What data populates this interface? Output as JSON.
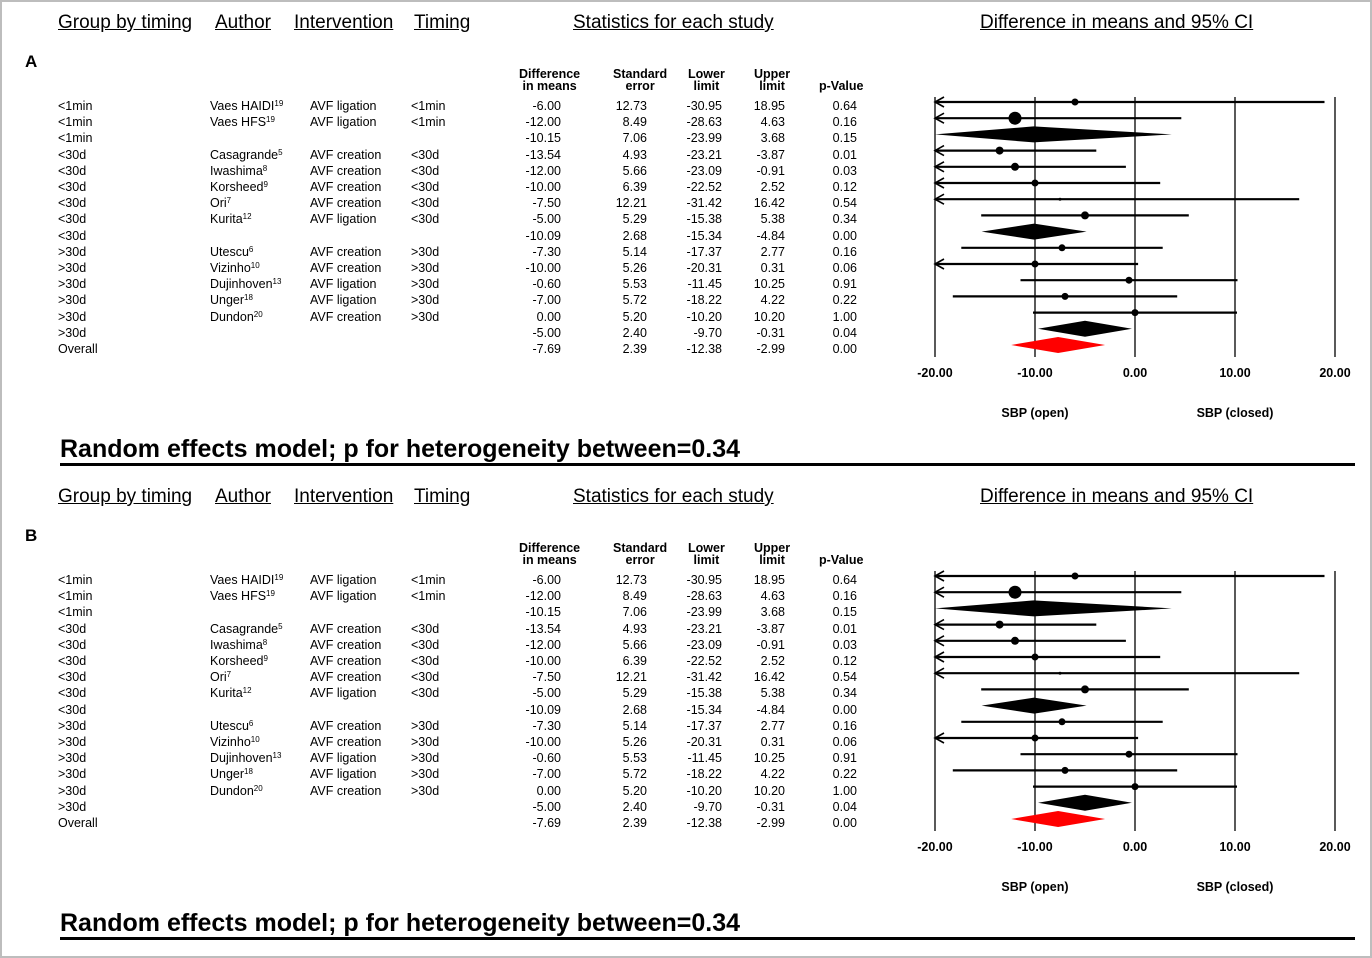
{
  "headers": {
    "group": "Group by timing",
    "author": "Author",
    "intervention": "Intervention",
    "timing": "Timing",
    "stats": "Statistics for each study",
    "ci": "Difference in means and 95% CI"
  },
  "columns": {
    "diff": "Difference\nin means",
    "se": "Standard\nerror",
    "lower": "Lower\nlimit",
    "upper": "Upper\nlimit",
    "p": "p-Value"
  },
  "axis_labels": {
    "left": "SBP (open)",
    "right": "SBP (closed)"
  },
  "footer": "Random effects model; p for heterogeneity between=0.34",
  "panels": [
    {
      "label": "A"
    },
    {
      "label": "B"
    }
  ],
  "rows": [
    {
      "group": "<1min",
      "author": "Vaes HAIDI",
      "sup": "19",
      "intervention": "AVF ligation",
      "timing": "<1min",
      "diff": "-6.00",
      "se": "12.73",
      "lower": "-30.95",
      "upper": "18.95",
      "p": "0.64"
    },
    {
      "group": "<1min",
      "author": "Vaes HFS",
      "sup": "19",
      "intervention": "AVF ligation",
      "timing": "<1min",
      "diff": "-12.00",
      "se": "8.49",
      "lower": "-28.63",
      "upper": "4.63",
      "p": "0.16"
    },
    {
      "group": "<1min",
      "author": "",
      "sup": "",
      "intervention": "",
      "timing": "",
      "diff": "-10.15",
      "se": "7.06",
      "lower": "-23.99",
      "upper": "3.68",
      "p": "0.15"
    },
    {
      "group": "<30d",
      "author": "Casagrande",
      "sup": "5",
      "intervention": "AVF creation",
      "timing": "<30d",
      "diff": "-13.54",
      "se": "4.93",
      "lower": "-23.21",
      "upper": "-3.87",
      "p": "0.01"
    },
    {
      "group": "<30d",
      "author": "Iwashima",
      "sup": "8",
      "intervention": "AVF creation",
      "timing": "<30d",
      "diff": "-12.00",
      "se": "5.66",
      "lower": "-23.09",
      "upper": "-0.91",
      "p": "0.03"
    },
    {
      "group": "<30d",
      "author": "Korsheed",
      "sup": "9",
      "intervention": "AVF creation",
      "timing": "<30d",
      "diff": "-10.00",
      "se": "6.39",
      "lower": "-22.52",
      "upper": "2.52",
      "p": "0.12"
    },
    {
      "group": "<30d",
      "author": "Ori",
      "sup": "7",
      "intervention": "AVF creation",
      "timing": "<30d",
      "diff": "-7.50",
      "se": "12.21",
      "lower": "-31.42",
      "upper": "16.42",
      "p": "0.54"
    },
    {
      "group": "<30d",
      "author": "Kurita",
      "sup": "12",
      "intervention": "AVF ligation",
      "timing": "<30d",
      "diff": "-5.00",
      "se": "5.29",
      "lower": "-15.38",
      "upper": "5.38",
      "p": "0.34"
    },
    {
      "group": "<30d",
      "author": "",
      "sup": "",
      "intervention": "",
      "timing": "",
      "diff": "-10.09",
      "se": "2.68",
      "lower": "-15.34",
      "upper": "-4.84",
      "p": "0.00"
    },
    {
      "group": ">30d",
      "author": "Utescu",
      "sup": "6",
      "intervention": "AVF creation",
      "timing": ">30d",
      "diff": "-7.30",
      "se": "5.14",
      "lower": "-17.37",
      "upper": "2.77",
      "p": "0.16"
    },
    {
      "group": ">30d",
      "author": "Vizinho",
      "sup": "10",
      "intervention": "AVF creation",
      "timing": ">30d",
      "diff": "-10.00",
      "se": "5.26",
      "lower": "-20.31",
      "upper": "0.31",
      "p": "0.06"
    },
    {
      "group": ">30d",
      "author": "Dujinhoven",
      "sup": "13",
      "intervention": "AVF ligation",
      "timing": ">30d",
      "diff": "-0.60",
      "se": "5.53",
      "lower": "-11.45",
      "upper": "10.25",
      "p": "0.91"
    },
    {
      "group": ">30d",
      "author": "Unger",
      "sup": "18",
      "intervention": "AVF ligation",
      "timing": ">30d",
      "diff": "-7.00",
      "se": "5.72",
      "lower": "-18.22",
      "upper": "4.22",
      "p": "0.22"
    },
    {
      "group": ">30d",
      "author": "Dundon",
      "sup": "20",
      "intervention": "AVF creation",
      "timing": ">30d",
      "diff": "0.00",
      "se": "5.20",
      "lower": "-10.20",
      "upper": "10.20",
      "p": "1.00"
    },
    {
      "group": ">30d",
      "author": "",
      "sup": "",
      "intervention": "",
      "timing": "",
      "diff": "-5.00",
      "se": "2.40",
      "lower": "-9.70",
      "upper": "-0.31",
      "p": "0.04"
    },
    {
      "group": "Overall",
      "author": "",
      "sup": "",
      "intervention": "",
      "timing": "",
      "diff": "-7.69",
      "se": "2.39",
      "lower": "-12.38",
      "upper": "-2.99",
      "p": "0.00"
    }
  ],
  "colors": {
    "overall": "#ff0000",
    "marker": "#000000"
  },
  "chart_data": {
    "type": "forest",
    "xlim": [
      -20,
      20
    ],
    "ticks": [
      "-20.00",
      "-10.00",
      "0.00",
      "10.00",
      "20.00"
    ],
    "tick_values": [
      -20,
      -10,
      0,
      10,
      20
    ],
    "kind": [
      "study",
      "study",
      "summary",
      "study",
      "study",
      "study",
      "study",
      "study",
      "summary",
      "study",
      "study",
      "study",
      "study",
      "study",
      "summary",
      "overall"
    ],
    "weight": [
      "small",
      "large",
      "",
      "medium",
      "medium",
      "small",
      "tiny",
      "medium",
      "",
      "small",
      "small",
      "small",
      "small",
      "small",
      "",
      ""
    ]
  }
}
